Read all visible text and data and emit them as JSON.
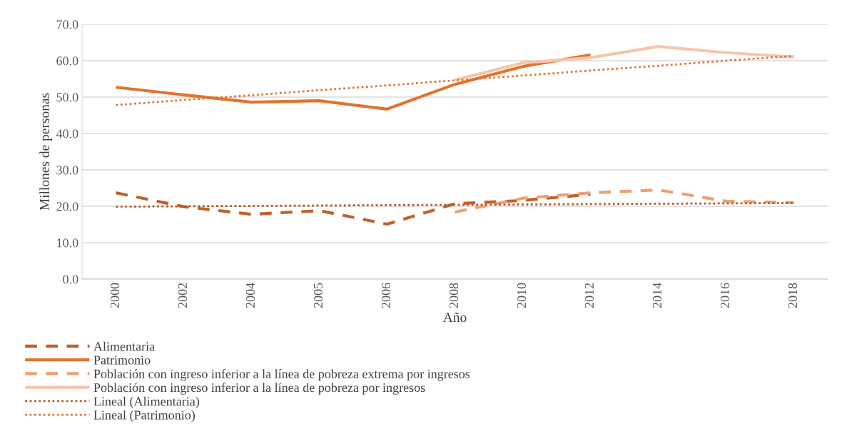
{
  "chart_data": {
    "type": "line",
    "xlabel": "Año",
    "ylabel": "Millones de personas",
    "categories": [
      "2000",
      "2002",
      "2004",
      "2005",
      "2006",
      "2008",
      "2010",
      "2012",
      "2014",
      "2016",
      "2018"
    ],
    "series": [
      {
        "name": "Alimentaria",
        "color": "#c0612b",
        "line_style": "dashed",
        "values": [
          23.7,
          19.9,
          17.8,
          18.8,
          15.1,
          20.7,
          21.6,
          23.3,
          null,
          null,
          null
        ]
      },
      {
        "name": "Patrimonio",
        "color": "#e07430",
        "line_style": "solid",
        "values": [
          52.7,
          50.6,
          48.6,
          49.0,
          46.7,
          53.5,
          58.4,
          61.6,
          null,
          null,
          null
        ]
      },
      {
        "name": "Población con ingreso inferior a la línea de pobreza extrema por ingresos",
        "color": "#f0a070",
        "line_style": "dashed",
        "values": [
          null,
          null,
          null,
          null,
          null,
          18.4,
          22.2,
          23.7,
          24.5,
          21.4,
          21.0
        ]
      },
      {
        "name": "Población con ingreso inferior a la línea de pobreza por ingresos",
        "color": "#f6c6aa",
        "line_style": "solid",
        "values": [
          null,
          null,
          null,
          null,
          null,
          54.7,
          59.4,
          60.8,
          63.9,
          62.2,
          61.0
        ]
      },
      {
        "name": "Lineal (Alimentaria)",
        "color": "#b5561e",
        "line_style": "dotted",
        "values": [
          19.9,
          20.0,
          20.1,
          20.2,
          20.3,
          20.4,
          20.5,
          20.6,
          20.7,
          20.8,
          20.9
        ]
      },
      {
        "name": "Lineal (Patrimonio)",
        "color": "#e07430",
        "line_style": "dotted",
        "values": [
          47.8,
          49.2,
          50.5,
          51.9,
          53.2,
          54.6,
          55.9,
          57.3,
          58.6,
          60.0,
          61.3
        ]
      }
    ],
    "ylim": [
      0,
      70
    ],
    "yticks": [
      {
        "value": 0,
        "label": "0.0"
      },
      {
        "value": 10,
        "label": "10.0"
      },
      {
        "value": 20,
        "label": "20.0"
      },
      {
        "value": 30,
        "label": "30.0"
      },
      {
        "value": 40,
        "label": "40.0"
      },
      {
        "value": 50,
        "label": "50.0"
      },
      {
        "value": 60,
        "label": "60.0"
      },
      {
        "value": 70,
        "label": "70.0"
      }
    ],
    "grid": "y",
    "legend": "bottom left",
    "marker": "none"
  }
}
